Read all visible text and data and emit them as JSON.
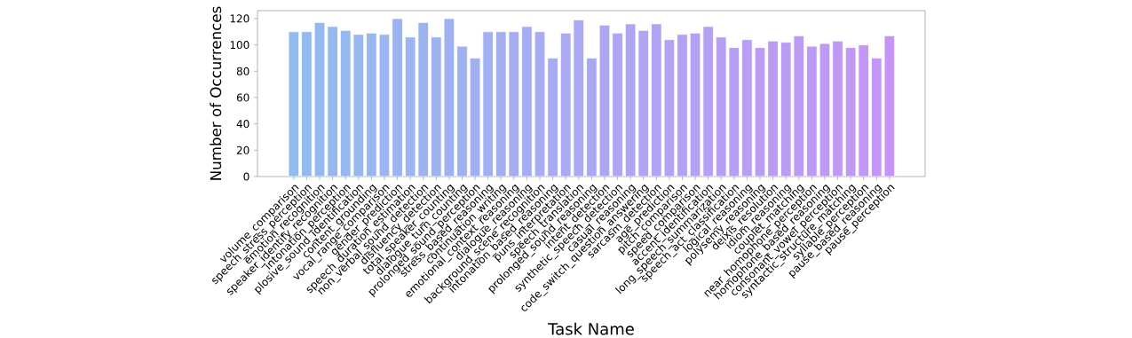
{
  "chart_data": {
    "type": "bar",
    "xlabel": "Task Name",
    "ylabel": "Number of Occurrences",
    "categories": [
      "volume_comparison",
      "speech_stress_perception",
      "emotion_recognition",
      "speaker_identify_recognition",
      "intonation_perception",
      "plosive_sound_identification",
      "content_grounding",
      "vocal_range_comparison",
      "gender_prediction",
      "speech_duration_estimation",
      "non_verbal_sound_detection",
      "disfluency_detection",
      "total_speaker_counting",
      "dialogue_turn_counting",
      "prolonged_sound_perception",
      "stress_based_reasoning",
      "continuation_writing",
      "emotional_context_reasoning",
      "dialogue_reasoning",
      "background_scene_recognition",
      "intonation_based_reasoning",
      "puns_interpretation",
      "speech_translation",
      "prolonged_sound_reasoning",
      "intent_detection",
      "synthetic_speech_detection",
      "casual_reasoning",
      "code_switch_question_answering",
      "sarcasm_detection",
      "age_prediction",
      "pitch_comparison",
      "speed_comparison",
      "accent_identification",
      "long_speech_summarization",
      "speech_act_classification",
      "logical_reasoning",
      "polysemy_reasoning",
      "deixis_resolution",
      "idiom_reasoning",
      "couplet_matching",
      "near_homophone_perception",
      "homophone_based_reasoning",
      "consonant_vowel_perception",
      "syntactic_structure_matching",
      "syllable_perception",
      "pause_based_reasoning",
      "pause_perception"
    ],
    "values": [
      110,
      110,
      117,
      114,
      111,
      108,
      109,
      108,
      120,
      106,
      117,
      106,
      120,
      99,
      90,
      110,
      110,
      110,
      114,
      110,
      90,
      109,
      119,
      90,
      115,
      109,
      116,
      111,
      116,
      104,
      108,
      109,
      114,
      106,
      98,
      104,
      98,
      103,
      102,
      107,
      99,
      101,
      103,
      98,
      100,
      90,
      107
    ],
    "colors": [
      "#92bbee",
      "#93baee",
      "#94b9ee",
      "#95b8ef",
      "#96b8ef",
      "#97b7ef",
      "#98b6ef",
      "#9ab5ef",
      "#9bb4f0",
      "#9cb4f0",
      "#9db3f0",
      "#9eb2f0",
      "#9fb1f0",
      "#a0b0f1",
      "#a1aff1",
      "#a2aff1",
      "#a3aef1",
      "#a5adf1",
      "#a6acf2",
      "#a7abf2",
      "#a8abf2",
      "#a9aaf2",
      "#aaa9f2",
      "#aba8f3",
      "#aca7f3",
      "#ada6f3",
      "#aea6f3",
      "#afa5f3",
      "#b0a4f4",
      "#b2a3f4",
      "#b3a2f4",
      "#b4a1f4",
      "#b5a1f4",
      "#b6a0f5",
      "#b79ff5",
      "#b89ef5",
      "#b99df5",
      "#ba9cf5",
      "#bb9cf5",
      "#bc9bf6",
      "#bd9af6",
      "#bf99f6",
      "#c098f6",
      "#c198f6",
      "#c297f7",
      "#c396f7",
      "#c495f7"
    ],
    "ylim": [
      0,
      126
    ],
    "yticks": [
      0,
      20,
      40,
      60,
      80,
      100,
      120
    ]
  }
}
